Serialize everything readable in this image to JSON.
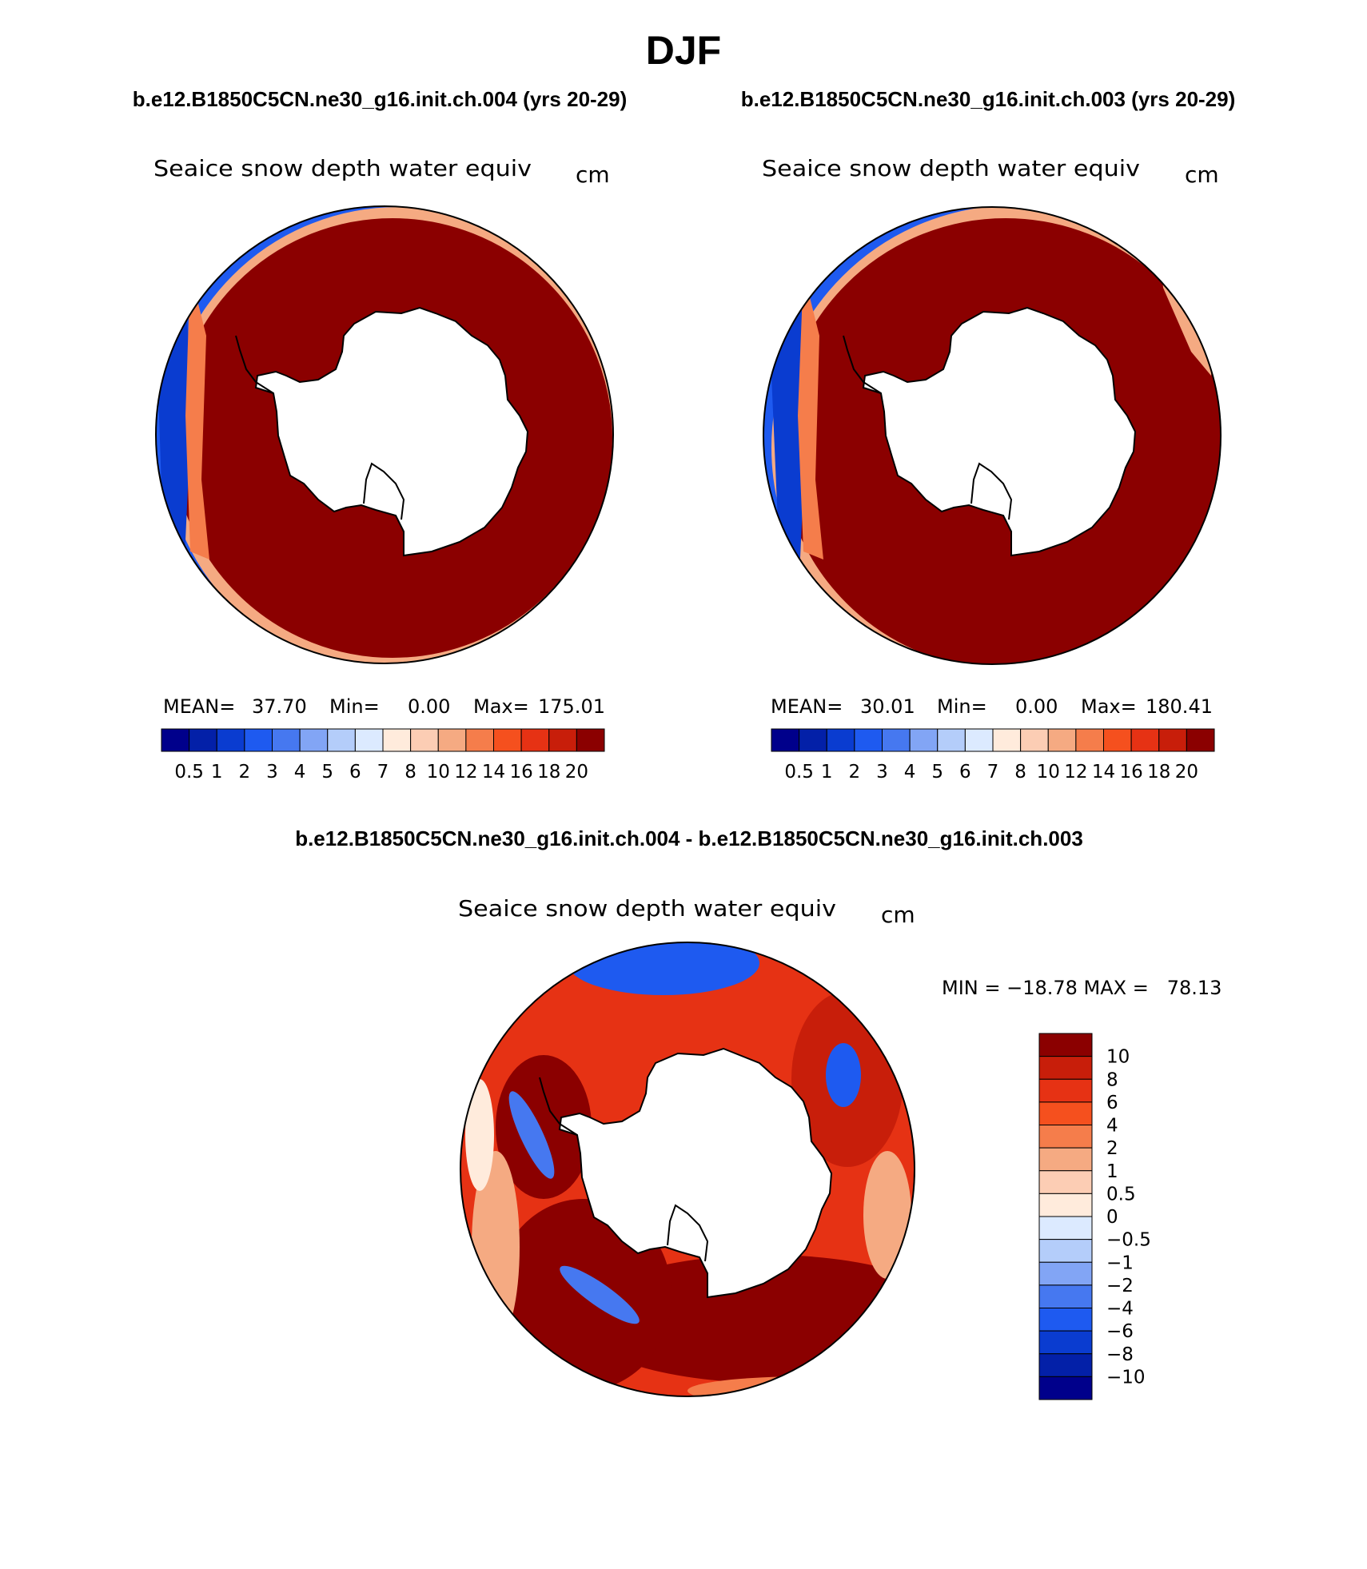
{
  "season_title": "DJF",
  "colors": {
    "landmask": "#ffffff",
    "coast": "#000000",
    "abs_palette": [
      "#00008b",
      "#0320a8",
      "#0a3cd0",
      "#1e5af0",
      "#4678f0",
      "#82a5f5",
      "#b4cdfa",
      "#dceaff",
      "#ffebdc",
      "#fccdb4",
      "#f5aa82",
      "#f57d4b",
      "#f5501e",
      "#e63214",
      "#c81e0a",
      "#8b0000"
    ],
    "diff_palette": [
      "#00008b",
      "#0320a8",
      "#0a3cd0",
      "#1e5af0",
      "#4678f0",
      "#82a5f5",
      "#b4cdfa",
      "#dceaff",
      "#ffebdc",
      "#fccdb4",
      "#f5aa82",
      "#f57d4b",
      "#f5501e",
      "#e63214",
      "#c81e0a",
      "#8b0000"
    ]
  },
  "top_panels": [
    {
      "case_label": "b.e12.B1850C5CN.ne30_g16.init.ch.004 (yrs 20-29)",
      "var_title": "Seaice snow depth water equiv",
      "units": "cm",
      "stats": {
        "mean_label": "MEAN=",
        "mean": "37.70",
        "min_label": "Min=",
        "min": "0.00",
        "max_label": "Max=",
        "max": "175.01"
      },
      "colorbar_labels": [
        "0.5",
        "1",
        "2",
        "3",
        "4",
        "5",
        "6",
        "7",
        "8",
        "10",
        "12",
        "14",
        "16",
        "18",
        "20"
      ]
    },
    {
      "case_label": "b.e12.B1850C5CN.ne30_g16.init.ch.003 (yrs 20-29)",
      "var_title": "Seaice snow depth water equiv",
      "units": "cm",
      "stats": {
        "mean_label": "MEAN=",
        "mean": "30.01",
        "min_label": "Min=",
        "min": "0.00",
        "max_label": "Max=",
        "max": "180.41"
      },
      "colorbar_labels": [
        "0.5",
        "1",
        "2",
        "3",
        "4",
        "5",
        "6",
        "7",
        "8",
        "10",
        "12",
        "14",
        "16",
        "18",
        "20"
      ]
    }
  ],
  "diff_panel": {
    "title": "b.e12.B1850C5CN.ne30_g16.init.ch.004 - b.e12.B1850C5CN.ne30_g16.init.ch.003",
    "var_title": "Seaice snow depth water equiv",
    "units": "cm",
    "minmax": "MIN = −18.78 MAX =   78.13",
    "colorbar_labels": [
      "10",
      "8",
      "6",
      "4",
      "2",
      "1",
      "0.5",
      "0",
      "−0.5",
      "−1",
      "−2",
      "−4",
      "−6",
      "−8",
      "−10"
    ]
  }
}
